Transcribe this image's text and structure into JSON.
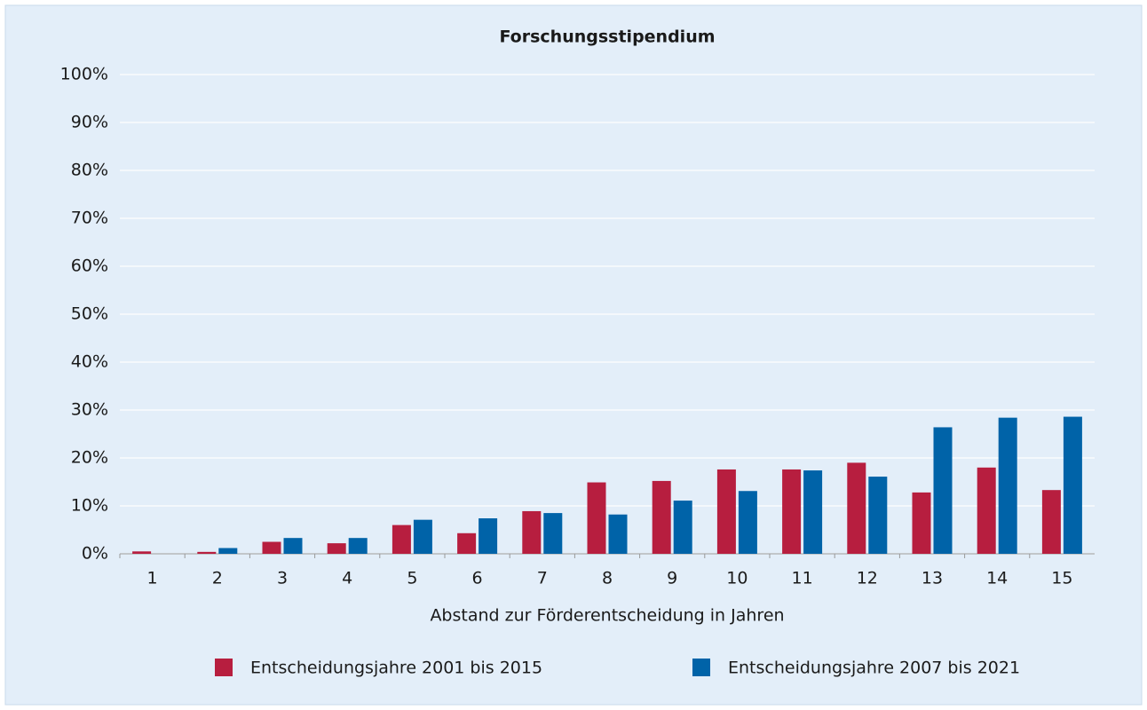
{
  "chart_data": {
    "type": "bar",
    "title": "Forschungsstipendium",
    "x_label": "Abstand zur Förderentscheidung in Jahren",
    "categories": [
      "1",
      "2",
      "3",
      "4",
      "5",
      "6",
      "7",
      "8",
      "9",
      "10",
      "11",
      "12",
      "13",
      "14",
      "15"
    ],
    "series": [
      {
        "name": "Entscheidungsjahre 2001 bis 2015",
        "color": "#b71e3f",
        "values": [
          0.5,
          0.4,
          2.5,
          2.2,
          6.0,
          4.3,
          8.9,
          14.9,
          15.2,
          17.6,
          17.6,
          19.0,
          12.8,
          18.0,
          13.3
        ]
      },
      {
        "name": "Entscheidungsjahre 2007 bis 2021",
        "color": "#0063a8",
        "values": [
          0,
          1.2,
          3.3,
          3.3,
          7.1,
          7.4,
          8.5,
          8.2,
          11.1,
          13.1,
          17.4,
          16.1,
          26.4,
          28.4,
          28.6
        ]
      }
    ],
    "ylim": [
      0,
      100
    ],
    "yticks": [
      {
        "value": 0,
        "label": "0%"
      },
      {
        "value": 10,
        "label": "10%"
      },
      {
        "value": 20,
        "label": "20%"
      },
      {
        "value": 30,
        "label": "30%"
      },
      {
        "value": 40,
        "label": "40%"
      },
      {
        "value": 50,
        "label": "50%"
      },
      {
        "value": 60,
        "label": "60%"
      },
      {
        "value": 70,
        "label": "70%"
      },
      {
        "value": 80,
        "label": "80%"
      },
      {
        "value": 90,
        "label": "90%"
      },
      {
        "value": 100,
        "label": "100%"
      }
    ],
    "grid": true,
    "legend": "bottom"
  }
}
